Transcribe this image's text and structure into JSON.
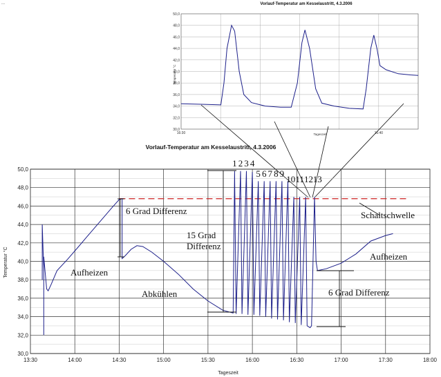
{
  "corner_text": "...",
  "chart_data": [
    {
      "id": "main",
      "type": "line",
      "title": "Vorlauf-Temperatur am Kesselaustritt, 4.3.2006",
      "xlabel": "Tageszeit",
      "ylabel": "Temperatur °C",
      "x_ticks": [
        "13:30",
        "14:00",
        "14:30",
        "15:00",
        "15:30",
        "16:00",
        "16:30",
        "17:00",
        "17:30",
        "18:00"
      ],
      "y_ticks": [
        "30,0",
        "32,0",
        "34,0",
        "36,0",
        "38,0",
        "40,0",
        "42,0",
        "44,0",
        "46,0",
        "48,0",
        "50,0"
      ],
      "xlim": [
        "13:30",
        "18:00"
      ],
      "ylim": [
        30,
        50
      ],
      "grid": true,
      "threshold": {
        "name": "Schaltschwelle",
        "y": 46.8,
        "x": [
          "14:30",
          "17:45"
        ],
        "color": "#cc2222"
      },
      "series": [
        {
          "color": "#1c1f8a",
          "points": [
            [
              "13:38",
              38.0
            ],
            [
              "13:38",
              44.0
            ],
            [
              "13:39",
              39.0
            ],
            [
              "13:39",
              32.0
            ],
            [
              "13:39",
              39.5
            ],
            [
              "13:39",
              40.5
            ],
            [
              "13:41",
              37.0
            ],
            [
              "13:42",
              36.8
            ],
            [
              "13:44",
              37.5
            ],
            [
              "13:48",
              39.0
            ],
            [
              "13:55",
              40.2
            ],
            [
              "14:02",
              41.5
            ],
            [
              "14:10",
              43.0
            ],
            [
              "14:18",
              44.5
            ],
            [
              "14:25",
              45.8
            ],
            [
              "14:30",
              46.7
            ],
            [
              "14:32",
              46.8
            ],
            [
              "14:32",
              40.3
            ],
            [
              "14:34",
              40.6
            ],
            [
              "14:38",
              41.3
            ],
            [
              "14:42",
              41.7
            ],
            [
              "14:46",
              41.6
            ],
            [
              "14:52",
              41.0
            ],
            [
              "15:00",
              40.0
            ],
            [
              "15:10",
              38.6
            ],
            [
              "15:20",
              37.0
            ],
            [
              "15:30",
              35.7
            ],
            [
              "15:40",
              34.7
            ],
            [
              "15:47",
              34.4
            ],
            [
              "15:48",
              49.8
            ],
            [
              "15:49",
              34.3
            ],
            [
              "15:52",
              49.8
            ],
            [
              "15:53",
              34.3
            ],
            [
              "15:56",
              49.8
            ],
            [
              "15:57",
              34.2
            ],
            [
              "16:00",
              49.7
            ],
            [
              "16:01",
              34.2
            ],
            [
              "16:04",
              48.7
            ],
            [
              "16:05",
              34.1
            ],
            [
              "16:08",
              48.7
            ],
            [
              "16:09",
              34.0
            ],
            [
              "16:12",
              48.7
            ],
            [
              "16:13",
              33.8
            ],
            [
              "16:16",
              48.7
            ],
            [
              "16:17",
              33.7
            ],
            [
              "16:20",
              48.7
            ],
            [
              "16:21",
              33.6
            ],
            [
              "16:24",
              48.7
            ],
            [
              "16:25",
              33.4
            ],
            [
              "16:28",
              47.0
            ],
            [
              "16:29",
              33.3
            ],
            [
              "16:32",
              47.0
            ],
            [
              "16:33",
              33.1
            ],
            [
              "16:36",
              47.0
            ],
            [
              "16:37",
              33.0
            ],
            [
              "16:39",
              32.8
            ],
            [
              "16:40",
              33.0
            ],
            [
              "16:42",
              47.0
            ],
            [
              "16:43",
              40.0
            ],
            [
              "16:44",
              39.0
            ],
            [
              "16:50",
              39.2
            ],
            [
              "17:00",
              39.8
            ],
            [
              "17:10",
              40.8
            ],
            [
              "17:20",
              42.2
            ],
            [
              "17:30",
              42.8
            ],
            [
              "17:35",
              43.0
            ]
          ]
        }
      ],
      "peak_labels": [
        "1",
        "2",
        "3",
        "4",
        "5",
        "6",
        "7",
        "8",
        "9",
        "10",
        "11",
        "12",
        "13"
      ],
      "annotations": [
        "6 Grad Differenz",
        "15 Grad Differenz",
        "6 Grad Differenz",
        "Aufheizen",
        "Abkühlen",
        "Aufheizen",
        "Schaltschwelle"
      ]
    },
    {
      "id": "inset",
      "type": "line",
      "title": "Vorlauf-Temperatur am Kesselaustritt, 4.3.2006",
      "xlabel": "Tageszeit",
      "ylabel": "Temperatur °C",
      "x_ticks": [
        "16:30",
        "",
        "",
        "",
        "",
        "16:40",
        ""
      ],
      "y_ticks": [
        "30,0",
        "32,0",
        "34,0",
        "36,0",
        "38,0",
        "40,0",
        "42,0",
        "44,0",
        "46,0",
        "48,0",
        "50,0"
      ],
      "ylim": [
        30,
        50
      ],
      "grid": true,
      "series": [
        {
          "color": "#1c1f8a",
          "points": [
            [
              0.0,
              34.4
            ],
            [
              1.5,
              34.3
            ],
            [
              2.6,
              34.2
            ],
            [
              2.8,
              38.0
            ],
            [
              3.0,
              44.0
            ],
            [
              3.3,
              48.0
            ],
            [
              3.5,
              47.0
            ],
            [
              3.8,
              40.0
            ],
            [
              4.1,
              36.0
            ],
            [
              4.6,
              34.6
            ],
            [
              5.5,
              34.0
            ],
            [
              6.5,
              33.8
            ],
            [
              7.2,
              33.8
            ],
            [
              7.6,
              38.0
            ],
            [
              7.9,
              45.0
            ],
            [
              8.1,
              47.2
            ],
            [
              8.4,
              44.0
            ],
            [
              8.8,
              37.0
            ],
            [
              9.2,
              34.5
            ],
            [
              10.0,
              34.0
            ],
            [
              11.0,
              33.6
            ],
            [
              11.9,
              33.5
            ],
            [
              12.1,
              37.0
            ],
            [
              12.4,
              44.0
            ],
            [
              12.6,
              46.3
            ],
            [
              12.8,
              44.0
            ],
            [
              13.0,
              41.0
            ],
            [
              13.4,
              40.3
            ],
            [
              14.2,
              39.6
            ],
            [
              15.0,
              39.4
            ],
            [
              15.5,
              39.3
            ]
          ],
          "x_range": [
            0,
            15.5
          ]
        }
      ]
    }
  ]
}
